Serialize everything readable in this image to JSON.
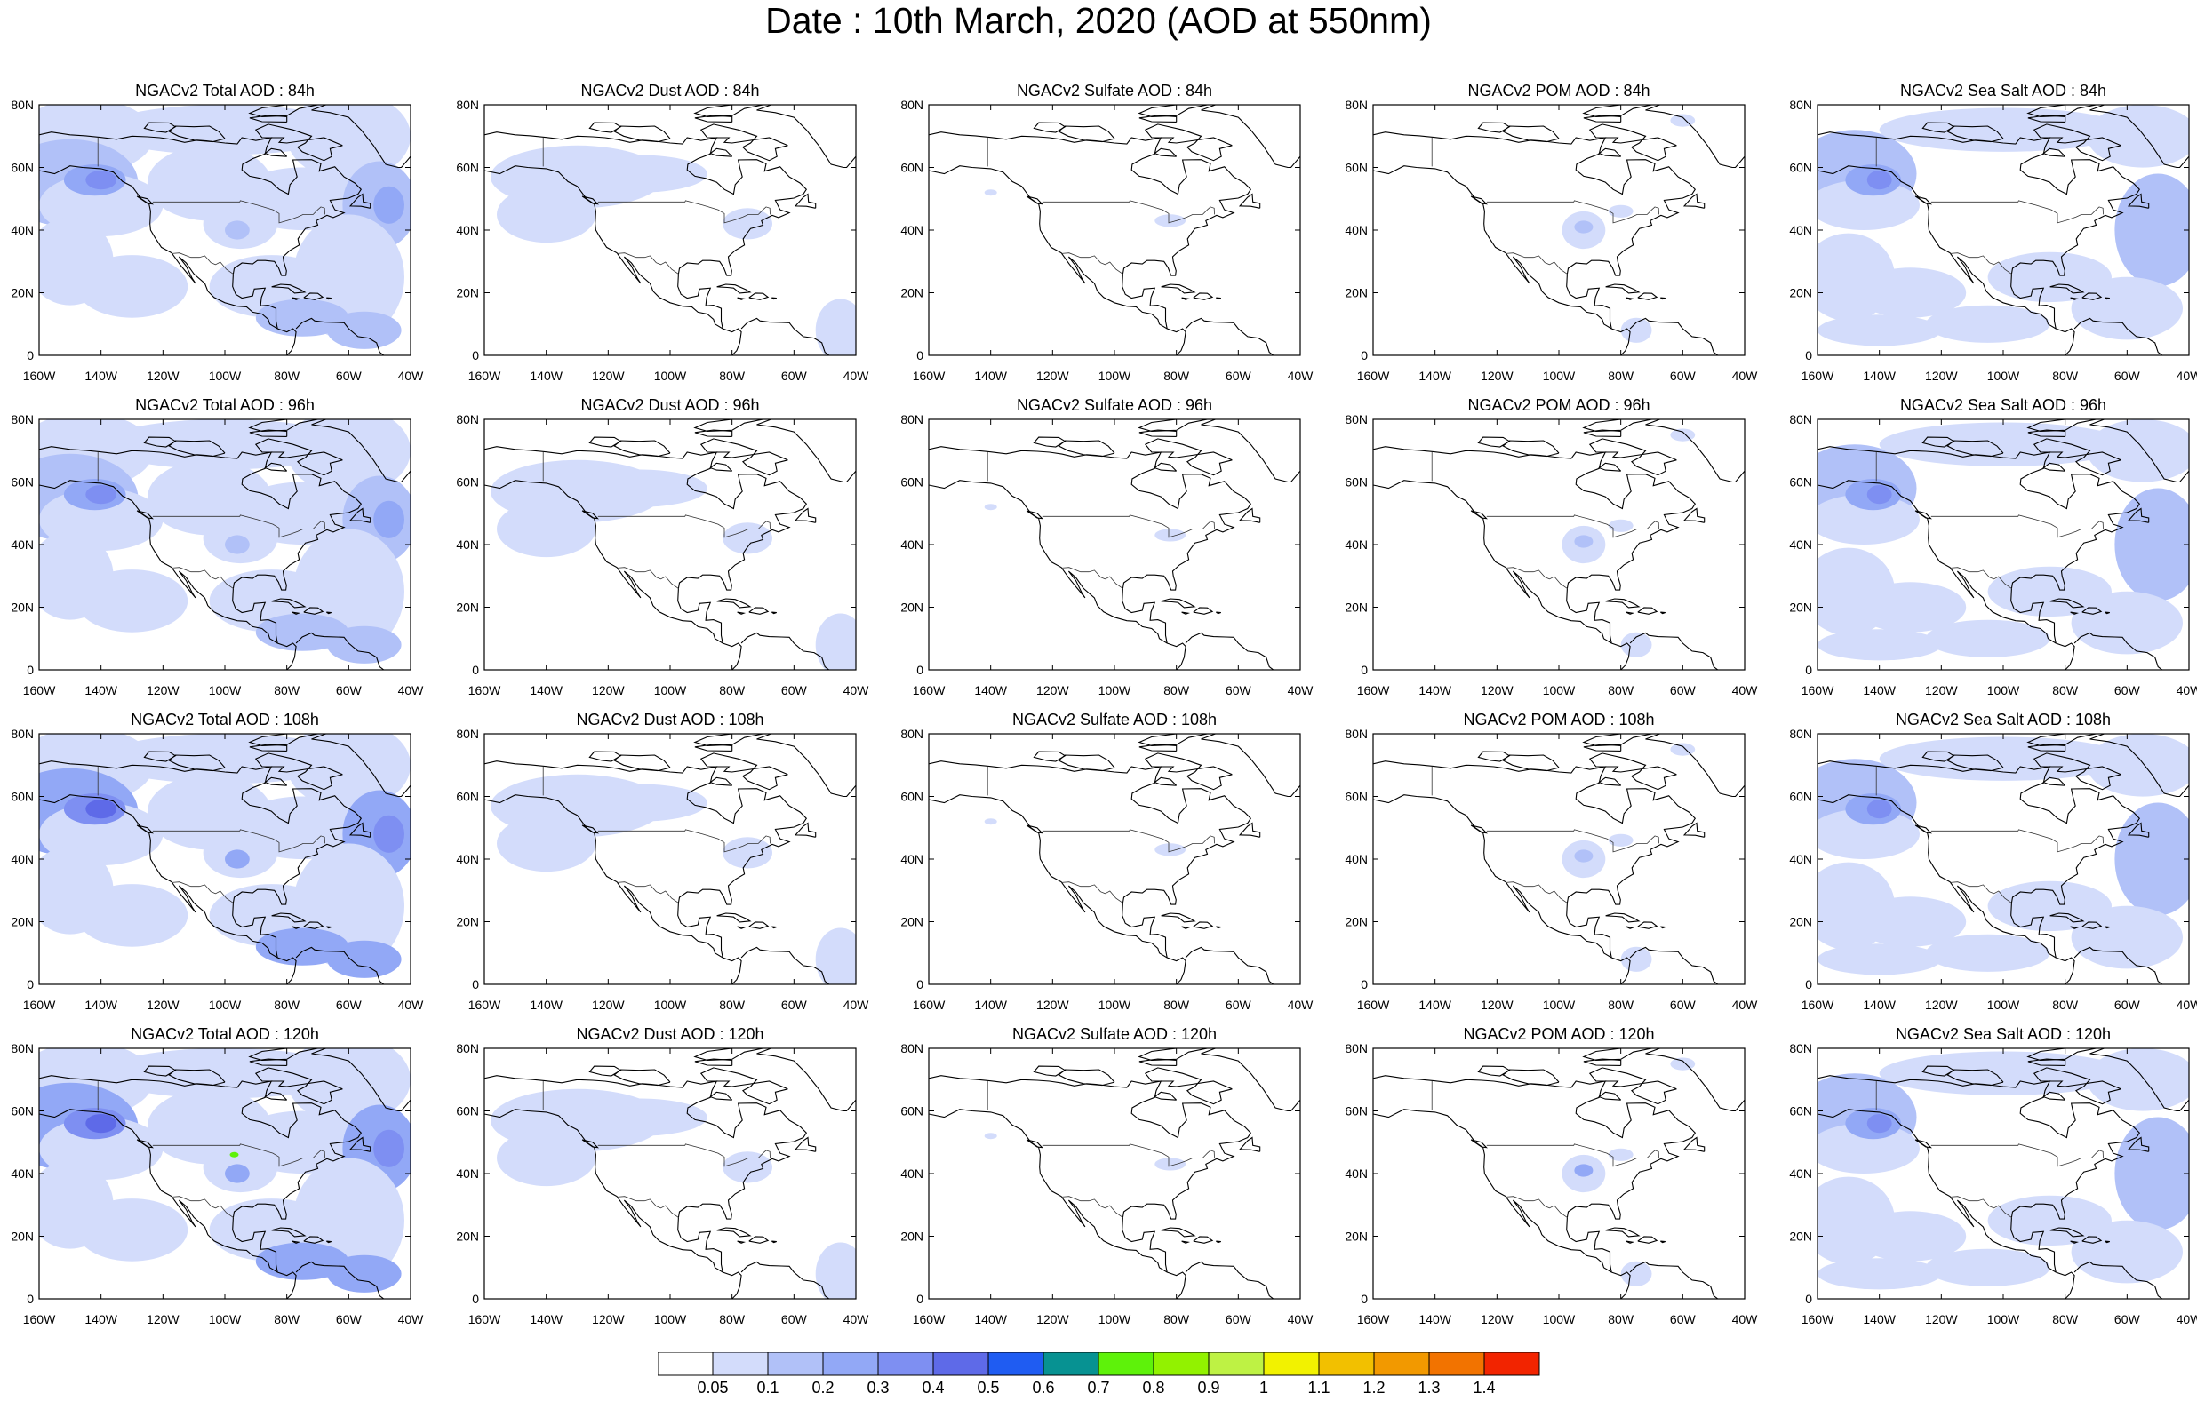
{
  "title": "Date : 10th March, 2020 (AOD at 550nm)",
  "lat_ticks": [
    "80N",
    "60N",
    "40N",
    "20N",
    "0"
  ],
  "lon_ticks": [
    "160W",
    "140W",
    "120W",
    "100W",
    "80W",
    "60W",
    "40W"
  ],
  "rows": [
    {
      "forecast_hour": "84h",
      "panels": [
        {
          "title": "NGACv2 Total AOD : 84h",
          "species": "total"
        },
        {
          "title": "NGACv2 Dust AOD : 84h",
          "species": "dust"
        },
        {
          "title": "NGACv2 Sulfate AOD : 84h",
          "species": "sulfate"
        },
        {
          "title": "NGACv2 POM AOD : 84h",
          "species": "pom"
        },
        {
          "title": "NGACv2 Sea Salt AOD : 84h",
          "species": "seasalt"
        }
      ]
    },
    {
      "forecast_hour": "96h",
      "panels": [
        {
          "title": "NGACv2 Total AOD : 96h",
          "species": "total"
        },
        {
          "title": "NGACv2 Dust AOD : 96h",
          "species": "dust"
        },
        {
          "title": "NGACv2 Sulfate AOD : 96h",
          "species": "sulfate"
        },
        {
          "title": "NGACv2 POM AOD : 96h",
          "species": "pom"
        },
        {
          "title": "NGACv2 Sea Salt AOD : 96h",
          "species": "seasalt"
        }
      ]
    },
    {
      "forecast_hour": "108h",
      "panels": [
        {
          "title": "NGACv2 Total AOD : 108h",
          "species": "total"
        },
        {
          "title": "NGACv2 Dust AOD : 108h",
          "species": "dust"
        },
        {
          "title": "NGACv2 Sulfate AOD : 108h",
          "species": "sulfate"
        },
        {
          "title": "NGACv2 POM AOD : 108h",
          "species": "pom"
        },
        {
          "title": "NGACv2 Sea Salt AOD : 108h",
          "species": "seasalt"
        }
      ]
    },
    {
      "forecast_hour": "120h",
      "panels": [
        {
          "title": "NGACv2 Total AOD : 120h",
          "species": "total"
        },
        {
          "title": "NGACv2 Dust AOD : 120h",
          "species": "dust"
        },
        {
          "title": "NGACv2 Sulfate AOD : 120h",
          "species": "sulfate"
        },
        {
          "title": "NGACv2 POM AOD : 120h",
          "species": "pom"
        },
        {
          "title": "NGACv2 Sea Salt  AOD : 120h",
          "species": "seasalt"
        }
      ]
    }
  ],
  "colorbar": {
    "labels": [
      "0.05",
      "0.1",
      "0.2",
      "0.3",
      "0.4",
      "0.5",
      "0.6",
      "0.7",
      "0.8",
      "0.9",
      "1",
      "1.1",
      "1.2",
      "1.3",
      "1.4"
    ],
    "colors": [
      "#ffffff",
      "#d3dcfb",
      "#b1c1f8",
      "#92a8f6",
      "#7e8ff2",
      "#5e6ae8",
      "#1f5cf2",
      "#079292",
      "#5ef20a",
      "#92f200",
      "#bef244",
      "#f2f200",
      "#f2c000",
      "#f29900",
      "#f27300",
      "#f22400"
    ]
  }
}
